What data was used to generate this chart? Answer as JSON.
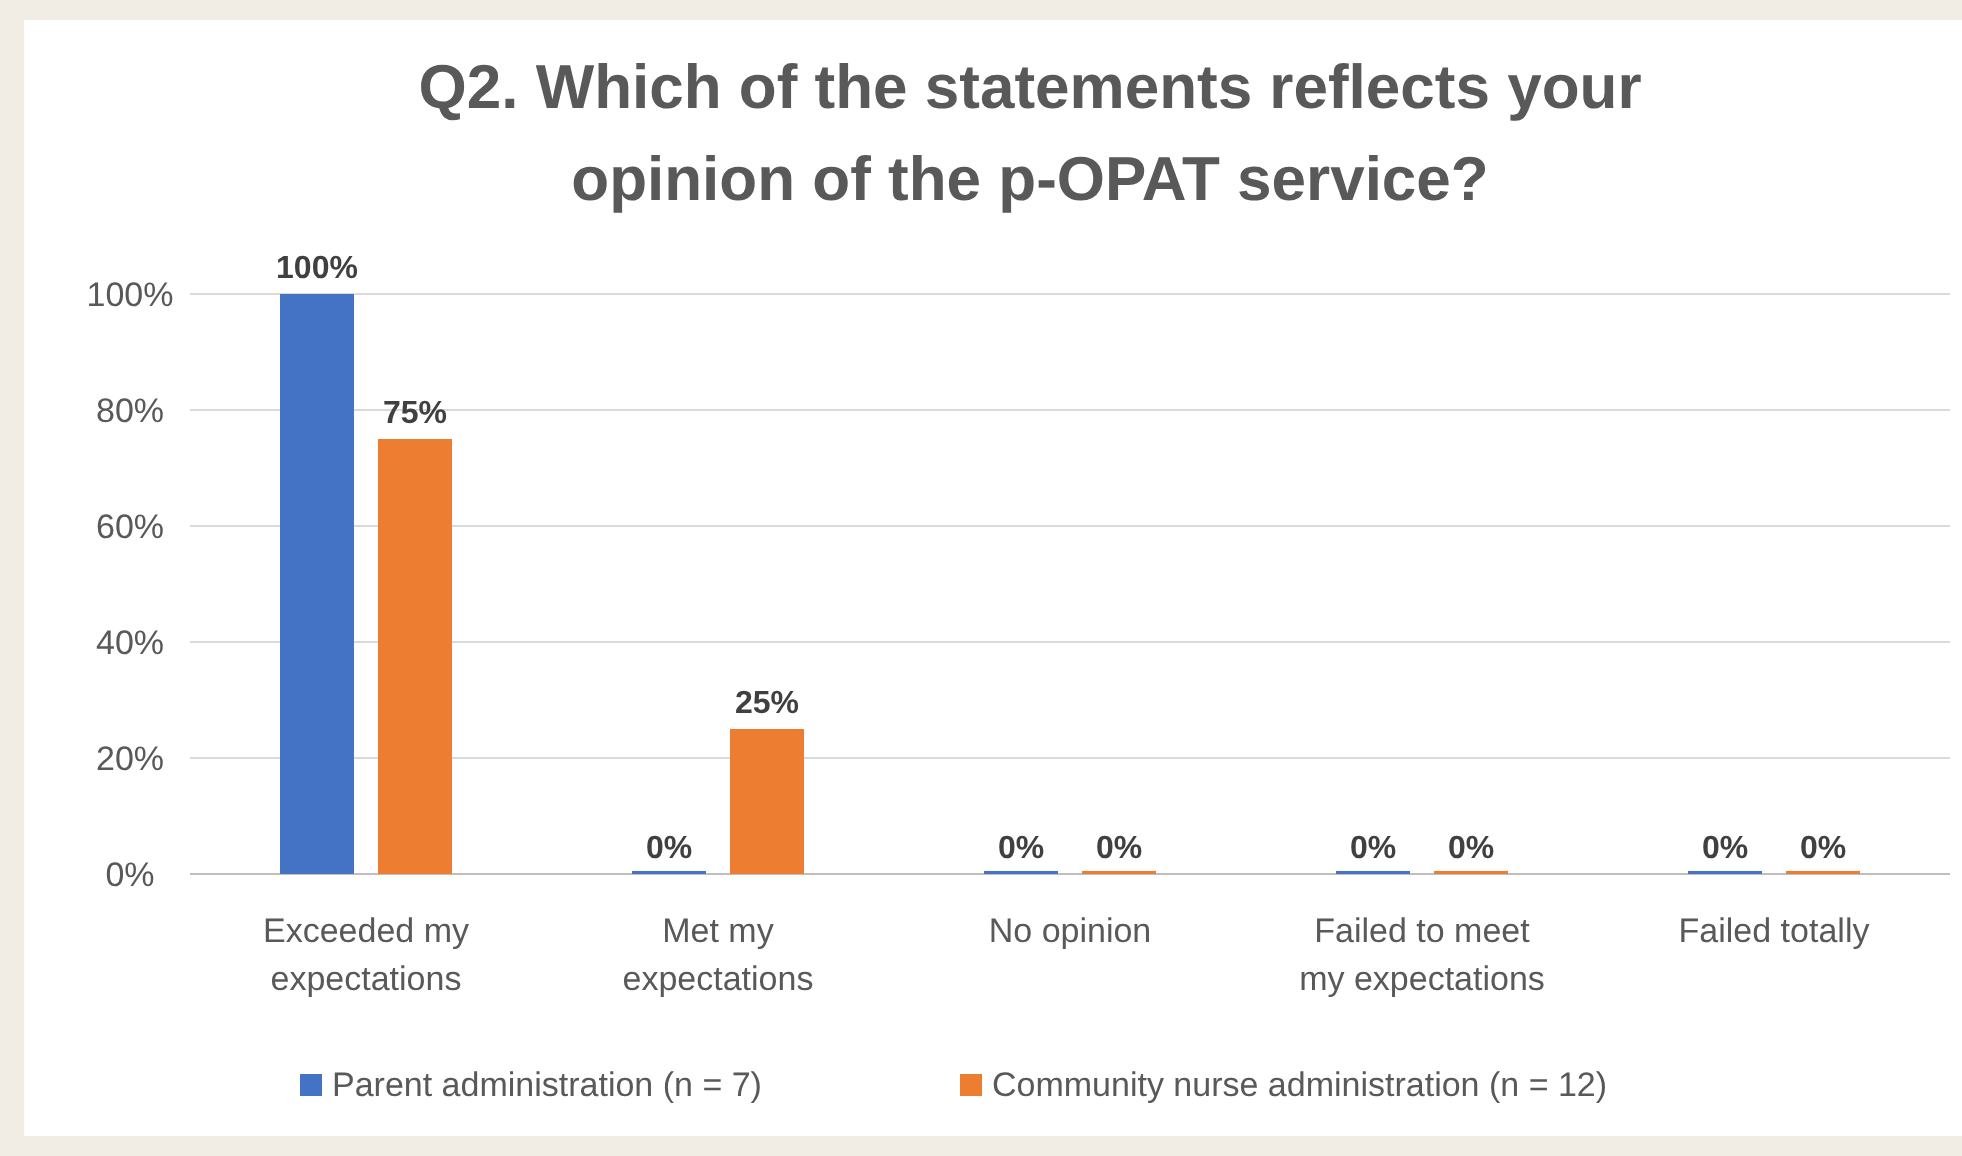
{
  "chart_data": {
    "type": "bar",
    "title": "Q2. Which of the statements reflects your opinion of the p-OPAT service?",
    "categories": [
      "Exceeded my expectations",
      "Met my expectations",
      "No opinion",
      "Failed to meet my expectations",
      "Failed totally"
    ],
    "series": [
      {
        "name": "Parent administration (n = 7)",
        "color": "#4472c4",
        "values": [
          100,
          0,
          0,
          0,
          0
        ],
        "value_labels": [
          "100%",
          "0%",
          "0%",
          "0%",
          "0%"
        ]
      },
      {
        "name": "Community nurse administration (n = 12)",
        "color": "#ed7d31",
        "values": [
          75,
          25,
          0,
          0,
          0
        ],
        "value_labels": [
          "75%",
          "25%",
          "0%",
          "0%",
          "0%"
        ]
      }
    ],
    "ylim": [
      0,
      100
    ],
    "yticks": [
      {
        "value": 0,
        "label": "0%"
      },
      {
        "value": 20,
        "label": "20%"
      },
      {
        "value": 40,
        "label": "40%"
      },
      {
        "value": 60,
        "label": "60%"
      },
      {
        "value": 80,
        "label": "80%"
      },
      {
        "value": 100,
        "label": "100%"
      }
    ],
    "grid": "y",
    "legend": "bottom"
  }
}
